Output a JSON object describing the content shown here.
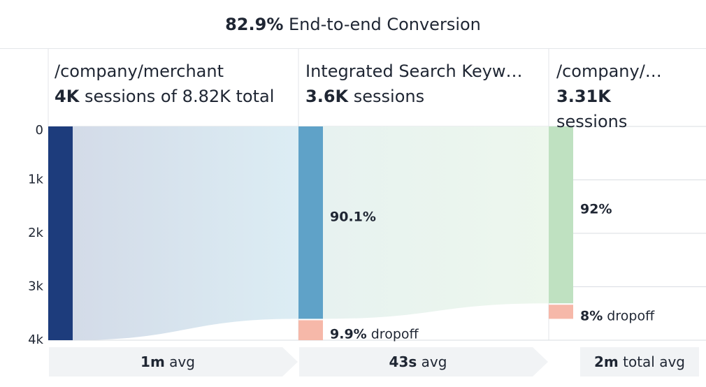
{
  "title": {
    "value": "82.9%",
    "text": "End-to-end Conversion"
  },
  "steps": [
    {
      "name": "/company/merchant",
      "sessions_value": "4K",
      "sessions_text": "sessions of 8.82K total"
    },
    {
      "name": "Integrated Search Keyw…",
      "sessions_value": "3.6K",
      "sessions_text": "sessions"
    },
    {
      "name": "/company/…",
      "sessions_value": "3.31K",
      "sessions_text": "sessions"
    }
  ],
  "footer": [
    {
      "value": "1m",
      "text": "avg"
    },
    {
      "value": "43s",
      "text": "avg"
    },
    {
      "value": "2m",
      "text": "total avg"
    }
  ],
  "colors": {
    "step1": "#1d3c7c",
    "step2": "#5fa2c8",
    "step3": "#bfe1c1",
    "dropoff": "#f6b8a9",
    "flow1": "#d8e6f1",
    "flow2": "#eaf5ee"
  },
  "chart_data": {
    "type": "bar",
    "orientation": "vertical-inverted",
    "categories": [
      "/company/merchant",
      "Integrated Search Keyw…",
      "/company/…"
    ],
    "sessions": [
      4000,
      3600,
      3310
    ],
    "dropoff": [
      null,
      400,
      290
    ],
    "conversion_labels": [
      "",
      "90.1%",
      "92%"
    ],
    "dropoff_labels": [
      "",
      "9.9%",
      "8%"
    ],
    "dropoff_suffix": "dropoff",
    "yticks": [
      "0",
      "1k",
      "2k",
      "3k",
      "4k"
    ],
    "ytick_values": [
      0,
      1000,
      2000,
      3000,
      4000
    ],
    "ylim": [
      0,
      4000
    ],
    "grid": true
  }
}
